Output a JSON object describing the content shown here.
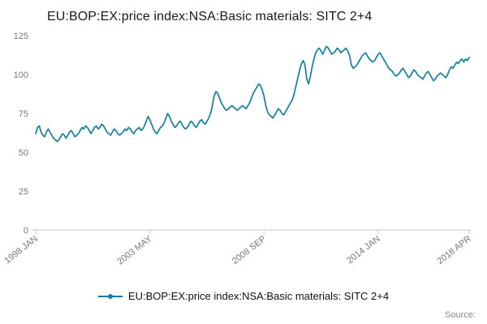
{
  "title": "EU:BOP:EX:price index:NSA:Basic materials: SITC 2+4",
  "legend": {
    "label": "EU:BOP:EX:price index:NSA:Basic materials: SITC 2+4"
  },
  "source_label": "Source:",
  "colors": {
    "line": "#1380A1",
    "axis": "#c8c8c8",
    "tick_text": "#777777",
    "title_text": "#1a1a1a"
  },
  "chart_data": {
    "type": "line",
    "title": "EU:BOP:EX:price index:NSA:Basic materials: SITC 2+4",
    "xlabel": "",
    "ylabel": "",
    "frequency": "monthly",
    "x_start": "1998 JAN",
    "x_end": "2018 APR",
    "x_tick_labels": [
      "1998 JAN",
      "2003 MAY",
      "2008 SEP",
      "2014 JAN",
      "2018 APR"
    ],
    "x_tick_month_index": [
      0,
      64,
      128,
      192,
      243
    ],
    "y_ticks": [
      0,
      25,
      50,
      75,
      100,
      125
    ],
    "ylim": [
      0,
      125
    ],
    "grid": false,
    "legend_position": "bottom-center",
    "series": [
      {
        "name": "EU:BOP:EX:price index:NSA:Basic materials: SITC 2+4",
        "values": [
          62,
          66,
          67,
          63,
          61,
          60,
          63,
          65,
          63,
          61,
          59,
          58,
          57,
          58,
          60,
          62,
          61,
          59,
          61,
          63,
          64,
          62,
          60,
          61,
          62,
          64,
          66,
          65,
          67,
          66,
          64,
          62,
          64,
          66,
          67,
          65,
          66,
          68,
          67,
          65,
          63,
          62,
          61,
          63,
          65,
          64,
          62,
          61,
          62,
          63,
          65,
          64,
          66,
          65,
          63,
          62,
          64,
          65,
          66,
          64,
          65,
          67,
          70,
          73,
          71,
          68,
          65,
          63,
          62,
          64,
          66,
          67,
          69,
          72,
          75,
          73,
          70,
          68,
          66,
          67,
          69,
          70,
          68,
          66,
          65,
          66,
          68,
          70,
          69,
          67,
          66,
          68,
          70,
          71,
          69,
          68,
          70,
          72,
          75,
          80,
          86,
          89,
          88,
          85,
          82,
          80,
          78,
          77,
          78,
          79,
          80,
          79,
          78,
          77,
          78,
          79,
          80,
          79,
          78,
          80,
          82,
          85,
          88,
          90,
          92,
          94,
          93,
          90,
          86,
          80,
          76,
          74,
          73,
          72,
          74,
          76,
          78,
          77,
          75,
          74,
          76,
          78,
          80,
          82,
          84,
          88,
          93,
          98,
          103,
          107,
          109,
          106,
          97,
          94,
          99,
          105,
          110,
          114,
          116,
          117,
          115,
          113,
          116,
          118,
          117,
          115,
          113,
          114,
          115,
          117,
          116,
          114,
          115,
          116,
          117,
          115,
          112,
          106,
          104,
          105,
          106,
          108,
          110,
          112,
          113,
          114,
          112,
          110,
          109,
          108,
          109,
          111,
          113,
          114,
          112,
          110,
          108,
          106,
          104,
          103,
          102,
          100,
          99,
          100,
          101,
          103,
          104,
          102,
          100,
          98,
          99,
          101,
          103,
          102,
          100,
          99,
          98,
          97,
          99,
          101,
          102,
          100,
          98,
          96,
          97,
          99,
          100,
          101,
          100,
          99,
          98,
          100,
          103,
          105,
          104,
          106,
          108,
          107,
          109,
          110,
          108,
          110,
          109,
          111
        ]
      }
    ]
  }
}
